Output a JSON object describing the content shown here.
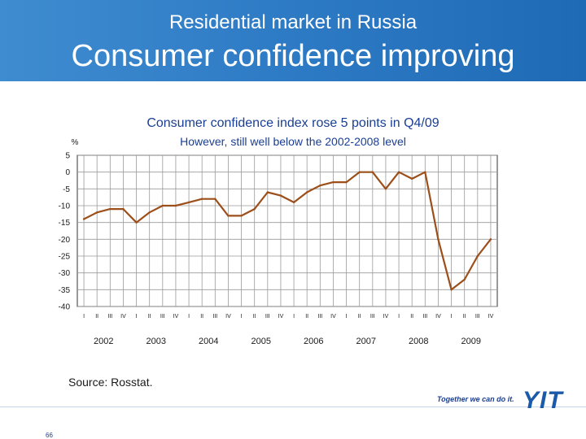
{
  "header": {
    "supertitle": "Residential market in Russia",
    "title": "Consumer confidence improving"
  },
  "chart_data": {
    "type": "line",
    "title": "Consumer confidence index rose 5 points in Q4/09",
    "subtitle": "However, still well below the 2002-2008 level",
    "ylabel": "%",
    "ylim": [
      -40,
      5
    ],
    "yticks": [
      5,
      0,
      -5,
      -10,
      -15,
      -20,
      -25,
      -30,
      -35,
      -40
    ],
    "grid": true,
    "line_color": "#9c4f1a",
    "years": [
      "2002",
      "2003",
      "2004",
      "2005",
      "2006",
      "2007",
      "2008",
      "2009"
    ],
    "quarter_labels": [
      "I",
      "II",
      "III",
      "IV"
    ],
    "x": [
      "2002 I",
      "2002 II",
      "2002 III",
      "2002 IV",
      "2003 I",
      "2003 II",
      "2003 III",
      "2003 IV",
      "2004 I",
      "2004 II",
      "2004 III",
      "2004 IV",
      "2005 I",
      "2005 II",
      "2005 III",
      "2005 IV",
      "2006 I",
      "2006 II",
      "2006 III",
      "2006 IV",
      "2007 I",
      "2007 II",
      "2007 III",
      "2007 IV",
      "2008 I",
      "2008 II",
      "2008 III",
      "2008 IV",
      "2009 I",
      "2009 II",
      "2009 III",
      "2009 IV"
    ],
    "values": [
      -14,
      -12,
      -11,
      -11,
      -15,
      -12,
      -10,
      -10,
      -9,
      -8,
      -8,
      -13,
      -13,
      -11,
      -6,
      -7,
      -9,
      -6,
      -4,
      -3,
      -3,
      0,
      0,
      -5,
      0,
      -2,
      0,
      -20,
      -35,
      -32,
      -25,
      -20
    ]
  },
  "source": "Source: Rosstat.",
  "footer": {
    "tagline": "Together we can do it.",
    "logo": "YIT",
    "page_number": "66"
  }
}
